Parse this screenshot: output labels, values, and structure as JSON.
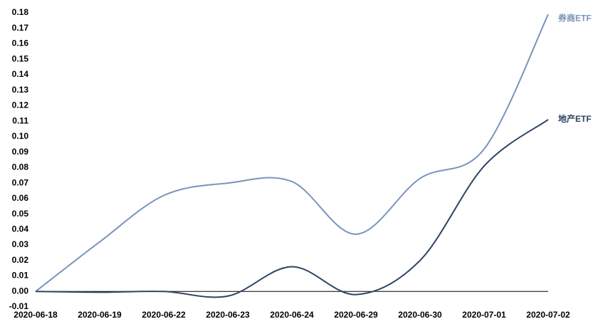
{
  "chart_data": {
    "type": "line",
    "categories": [
      "2020-06-18",
      "2020-06-19",
      "2020-06-22",
      "2020-06-23",
      "2020-06-24",
      "2020-06-29",
      "2020-06-30",
      "2020-07-01",
      "2020-07-02"
    ],
    "series": [
      {
        "name": "券商ETF",
        "color": "#7a94bb",
        "values": [
          0,
          0.032,
          0.062,
          0.07,
          0.071,
          0.037,
          0.073,
          0.092,
          0.179
        ]
      },
      {
        "name": "地产ETF",
        "color": "#2e4463",
        "values": [
          0,
          -0.0005,
          0,
          -0.003,
          0.016,
          -0.002,
          0.02,
          0.081,
          0.111
        ]
      }
    ],
    "ylim": [
      -0.01,
      0.18
    ],
    "yticks": [
      -0.01,
      {
        "value": 0,
        "label": "0.00"
      },
      0.01,
      0.02,
      0.03,
      0.04,
      0.05,
      0.06,
      0.07,
      0.08,
      0.09,
      {
        "value": 0.1,
        "label": "0.10"
      },
      0.11,
      0.12,
      0.13,
      0.14,
      0.15,
      0.16,
      0.17,
      0.18
    ]
  }
}
